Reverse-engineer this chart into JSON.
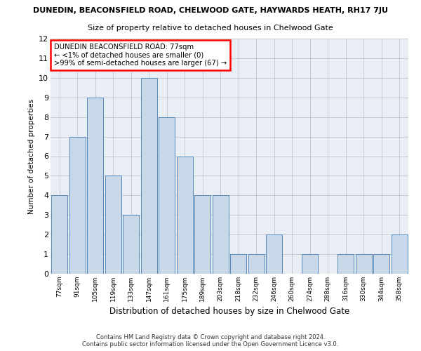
{
  "title_main": "DUNEDIN, BEACONSFIELD ROAD, CHELWOOD GATE, HAYWARDS HEATH, RH17 7JU",
  "title_sub": "Size of property relative to detached houses in Chelwood Gate",
  "xlabel": "Distribution of detached houses by size in Chelwood Gate",
  "ylabel": "Number of detached properties",
  "categories": [
    "77sqm",
    "91sqm",
    "105sqm",
    "119sqm",
    "133sqm",
    "147sqm",
    "161sqm",
    "175sqm",
    "189sqm",
    "203sqm",
    "218sqm",
    "232sqm",
    "246sqm",
    "260sqm",
    "274sqm",
    "288sqm",
    "316sqm",
    "330sqm",
    "344sqm",
    "358sqm"
  ],
  "values": [
    4,
    7,
    9,
    5,
    3,
    10,
    8,
    6,
    4,
    4,
    1,
    1,
    2,
    0,
    1,
    0,
    1,
    1,
    1,
    2
  ],
  "bar_color": "#c8d8e8",
  "bar_edge_color": "#5588bb",
  "annotation_text": "DUNEDIN BEACONSFIELD ROAD: 77sqm\n← <1% of detached houses are smaller (0)\n>99% of semi-detached houses are larger (67) →",
  "annotation_box_color": "white",
  "annotation_box_edge_color": "red",
  "ylim": [
    0,
    12
  ],
  "yticks": [
    0,
    1,
    2,
    3,
    4,
    5,
    6,
    7,
    8,
    9,
    10,
    11,
    12
  ],
  "grid_color": "#bbbbcc",
  "bg_color": "#e8eef4",
  "footnote": "Contains HM Land Registry data © Crown copyright and database right 2024.\nContains public sector information licensed under the Open Government Licence v3.0."
}
